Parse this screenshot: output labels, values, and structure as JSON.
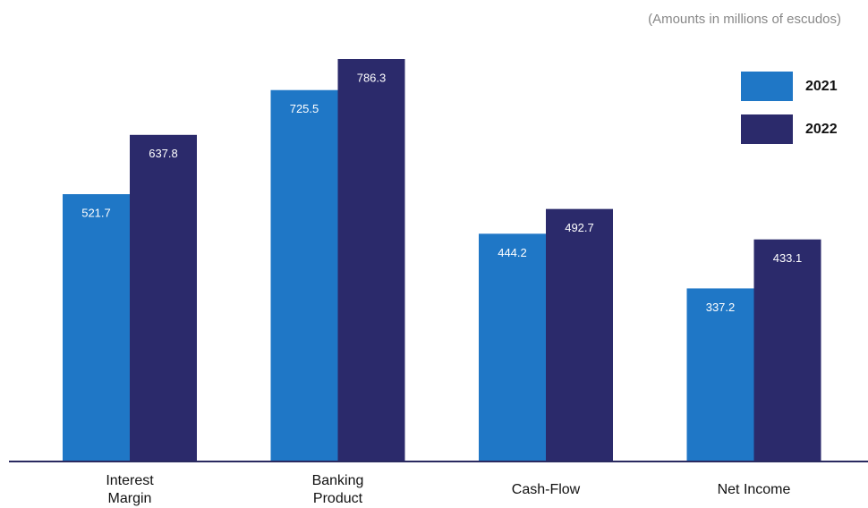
{
  "chart_data": {
    "type": "bar",
    "note": "(Amounts in millions of escudos)",
    "categories": [
      "Interest Margin",
      "Banking Product",
      "Cash-Flow",
      "Net Income"
    ],
    "series": [
      {
        "name": "2021",
        "color": "#1f77c6",
        "values": [
          521.7,
          725.5,
          444.2,
          337.2
        ]
      },
      {
        "name": "2022",
        "color": "#2b2a6b",
        "values": [
          637.8,
          786.3,
          492.7,
          433.1
        ]
      }
    ],
    "legend": "top-right"
  }
}
